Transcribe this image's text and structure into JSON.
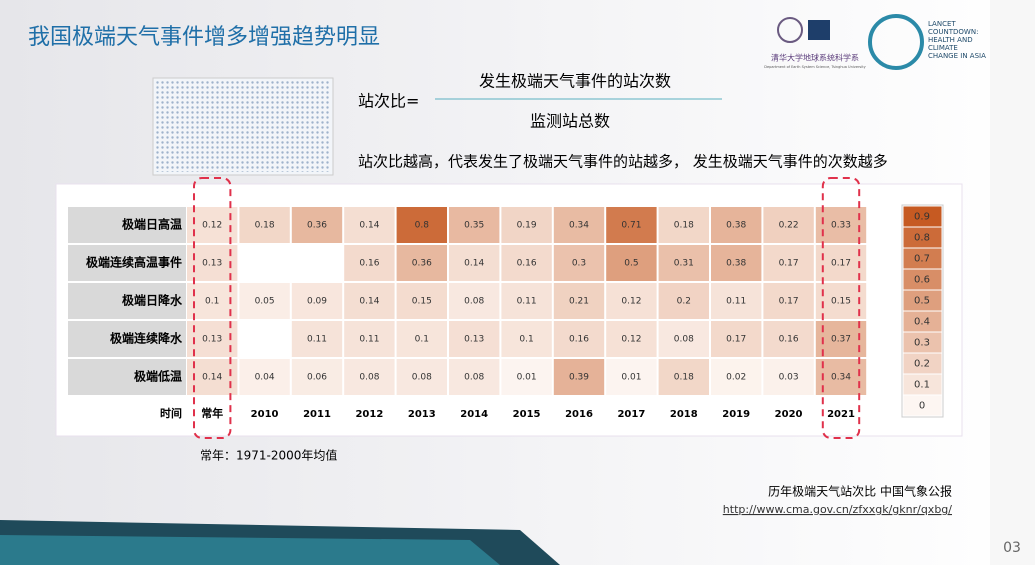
{
  "slide": {
    "title": "我国极端天气事件增多增强趋势明显",
    "formula_lhs": "站次比=",
    "numerator": "发生极端天气事件的站次数",
    "denominator": "监测站总数",
    "note": "站次比越高，代表发生了极端天气事件的站越多， 发生极端天气事件的次数越多",
    "footnote": "常年：1971-2000年均值",
    "source": "历年极端天气站次比 中国气象公报",
    "url": "http://www.cma.gov.cn/zfxxgk/gknr/qxbg/",
    "page": "03",
    "logo1_cn": "清华大学地球系统科学系",
    "logo1_en": "Department of Earth System Science, Tsinghua University",
    "logo2": "LANCET COUNTDOWN: HEALTH AND CLIMATE CHANGE IN ASIA"
  },
  "chart_data": {
    "type": "heatmap",
    "x_label": "时间",
    "categories": [
      "常年",
      "2010",
      "2011",
      "2012",
      "2013",
      "2014",
      "2015",
      "2016",
      "2017",
      "2018",
      "2019",
      "2020",
      "2021"
    ],
    "rows": [
      "极端日高温",
      "极端连续高温事件",
      "极端日降水",
      "极端连续降水",
      "极端低温"
    ],
    "values": [
      [
        0.12,
        0.18,
        0.36,
        0.14,
        0.8,
        0.35,
        0.19,
        0.34,
        0.71,
        0.18,
        0.38,
        0.22,
        0.33
      ],
      [
        0.13,
        null,
        null,
        0.16,
        0.36,
        0.14,
        0.16,
        0.3,
        0.5,
        0.31,
        0.38,
        0.17,
        0.17
      ],
      [
        0.1,
        0.05,
        0.09,
        0.14,
        0.15,
        0.08,
        0.11,
        0.21,
        0.12,
        0.2,
        0.11,
        0.17,
        0.15
      ],
      [
        0.13,
        null,
        0.11,
        0.11,
        0.1,
        0.13,
        0.1,
        0.16,
        0.12,
        0.08,
        0.17,
        0.16,
        0.37
      ],
      [
        0.14,
        0.04,
        0.06,
        0.08,
        0.08,
        0.08,
        0.01,
        0.39,
        0.01,
        0.18,
        0.02,
        0.03,
        0.34
      ]
    ],
    "color_low": "#fdf6f2",
    "color_high": "#c65a22",
    "clim": [
      0,
      0.9
    ],
    "colorbar": {
      "ticks": [
        0.9,
        0.8,
        0.7,
        0.6,
        0.5,
        0.4,
        0.3,
        0.2,
        0.1,
        0
      ]
    }
  }
}
